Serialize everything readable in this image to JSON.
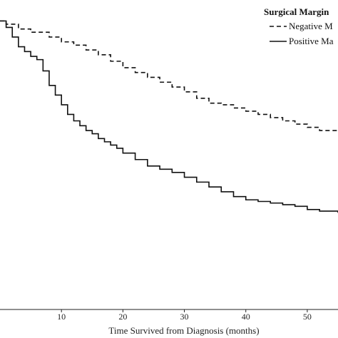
{
  "chart_data": {
    "type": "line",
    "xlabel": "Time Survived from Diagnosis (months)",
    "ylabel": "",
    "xlim": [
      0,
      55
    ],
    "ylim": [
      0,
      1.0
    ],
    "x_ticks": [
      "10",
      "20",
      "30",
      "40",
      "50"
    ],
    "x_tick_values": [
      10,
      20,
      30,
      40,
      50
    ],
    "grid": false,
    "legend": {
      "title": "Surgical Margin",
      "placement": "top-right",
      "entries": [
        "Negative M",
        "Positive Ma"
      ]
    },
    "series": [
      {
        "name": "Negative M",
        "style": "dashed",
        "step": true,
        "x": [
          0,
          1,
          3,
          5,
          8,
          10,
          12,
          14,
          16,
          18,
          20,
          22,
          24,
          26,
          28,
          30,
          32,
          34,
          36,
          38,
          40,
          42,
          44,
          46,
          48,
          50,
          52,
          55
        ],
        "y": [
          0.935,
          0.925,
          0.91,
          0.9,
          0.885,
          0.87,
          0.86,
          0.845,
          0.83,
          0.81,
          0.79,
          0.775,
          0.76,
          0.745,
          0.73,
          0.715,
          0.695,
          0.68,
          0.675,
          0.665,
          0.655,
          0.645,
          0.635,
          0.625,
          0.615,
          0.605,
          0.595,
          0.59
        ]
      },
      {
        "name": "Positive Ma",
        "style": "solid",
        "step": true,
        "x": [
          0,
          1,
          2,
          3,
          4,
          5,
          6,
          7,
          8,
          9,
          10,
          11,
          12,
          13,
          14,
          15,
          16,
          17,
          18,
          19,
          20,
          22,
          24,
          26,
          28,
          30,
          32,
          34,
          36,
          38,
          40,
          42,
          44,
          46,
          48,
          50,
          52,
          55
        ],
        "y": [
          0.935,
          0.915,
          0.885,
          0.855,
          0.84,
          0.825,
          0.815,
          0.78,
          0.735,
          0.705,
          0.675,
          0.645,
          0.625,
          0.61,
          0.595,
          0.585,
          0.57,
          0.56,
          0.55,
          0.54,
          0.525,
          0.505,
          0.485,
          0.475,
          0.465,
          0.45,
          0.435,
          0.42,
          0.405,
          0.39,
          0.38,
          0.375,
          0.37,
          0.365,
          0.36,
          0.35,
          0.345,
          0.34
        ]
      }
    ]
  }
}
